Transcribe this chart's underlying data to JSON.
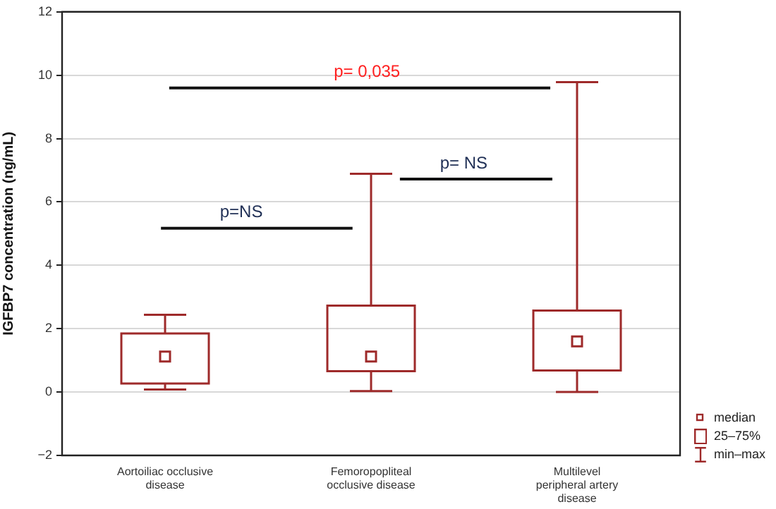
{
  "chart_data": {
    "type": "box",
    "ylabel": "IGFBP7 concentration (ng/mL)",
    "categories": [
      "Aortoiliac occlusive disease",
      "Femoropopliteal occlusive disease",
      "Multilevel peripheral artery disease"
    ],
    "series": [
      {
        "color": "#9e2a2a",
        "boxes": [
          {
            "low": 0.08,
            "q1": 0.27,
            "median": 1.12,
            "q3": 1.85,
            "high": 2.44
          },
          {
            "low": 0.03,
            "q1": 0.66,
            "median": 1.12,
            "q3": 2.73,
            "high": 6.89
          },
          {
            "low": 0.0,
            "q1": 0.68,
            "median": 1.6,
            "q3": 2.57,
            "high": 9.78
          }
        ]
      }
    ],
    "ylim": [
      -2,
      12
    ],
    "yticks": [
      -2,
      0,
      2,
      4,
      6,
      8,
      10,
      12
    ],
    "grid": "y",
    "annotations": [
      "p= 0,035",
      "p=NS",
      "p= NS",
      "median",
      "25–75%",
      "min–max"
    ]
  }
}
